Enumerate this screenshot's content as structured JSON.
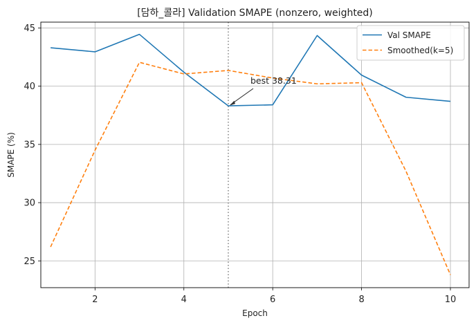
{
  "chart_data": {
    "type": "line",
    "title": "[담하_콜라] Validation SMAPE (nonzero, weighted)",
    "xlabel": "Epoch",
    "ylabel": "SMAPE (%)",
    "x": [
      1,
      2,
      3,
      4,
      5,
      6,
      7,
      8,
      9,
      10
    ],
    "xlim": [
      0.78,
      10.42
    ],
    "ylim": [
      22.7,
      45.5
    ],
    "xticks": [
      2,
      4,
      6,
      8,
      10
    ],
    "yticks": [
      25,
      30,
      35,
      40,
      45
    ],
    "grid": true,
    "legend_position": "top-right",
    "series": [
      {
        "name": "Val SMAPE",
        "color": "#1f77b4",
        "style": "solid",
        "values": [
          43.3,
          42.95,
          44.45,
          41.2,
          38.31,
          38.4,
          44.35,
          40.95,
          39.05,
          38.7
        ]
      },
      {
        "name": "Smoothed(k=5)",
        "color": "#ff7f0e",
        "style": "dashed",
        "values": [
          26.2,
          34.5,
          42.05,
          41.05,
          41.35,
          40.7,
          40.2,
          40.3,
          32.7,
          23.8
        ]
      }
    ],
    "annotation": {
      "text": "best 38.31",
      "x": 5,
      "y": 38.31
    },
    "vline": {
      "x": 5,
      "style": "dotted",
      "color": "#808080"
    }
  }
}
